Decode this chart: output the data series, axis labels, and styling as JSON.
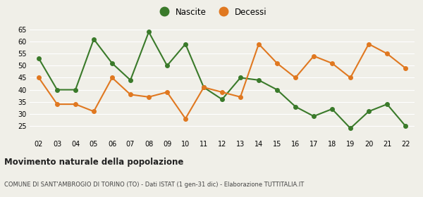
{
  "years": [
    "02",
    "03",
    "04",
    "05",
    "06",
    "07",
    "08",
    "09",
    "10",
    "11",
    "12",
    "13",
    "14",
    "15",
    "16",
    "17",
    "18",
    "19",
    "20",
    "21",
    "22"
  ],
  "nascite": [
    53,
    40,
    40,
    61,
    51,
    44,
    64,
    50,
    59,
    41,
    36,
    45,
    44,
    40,
    33,
    29,
    32,
    24,
    31,
    34,
    25
  ],
  "decessi": [
    45,
    34,
    34,
    31,
    45,
    38,
    37,
    39,
    28,
    41,
    39,
    37,
    59,
    51,
    45,
    54,
    51,
    45,
    59,
    55,
    49
  ],
  "nascite_color": "#3a7a2a",
  "decessi_color": "#e07820",
  "background_color": "#f0efe8",
  "grid_color": "#ffffff",
  "title": "Movimento naturale della popolazione",
  "subtitle": "COMUNE DI SANT'AMBROGIO DI TORINO (TO) - Dati ISTAT (1 gen-31 dic) - Elaborazione TUTTITALIA.IT",
  "legend_nascite": "Nascite",
  "legend_decessi": "Decessi",
  "ylim": [
    20,
    65
  ],
  "yticks": [
    25,
    30,
    35,
    40,
    45,
    50,
    55,
    60,
    65
  ]
}
